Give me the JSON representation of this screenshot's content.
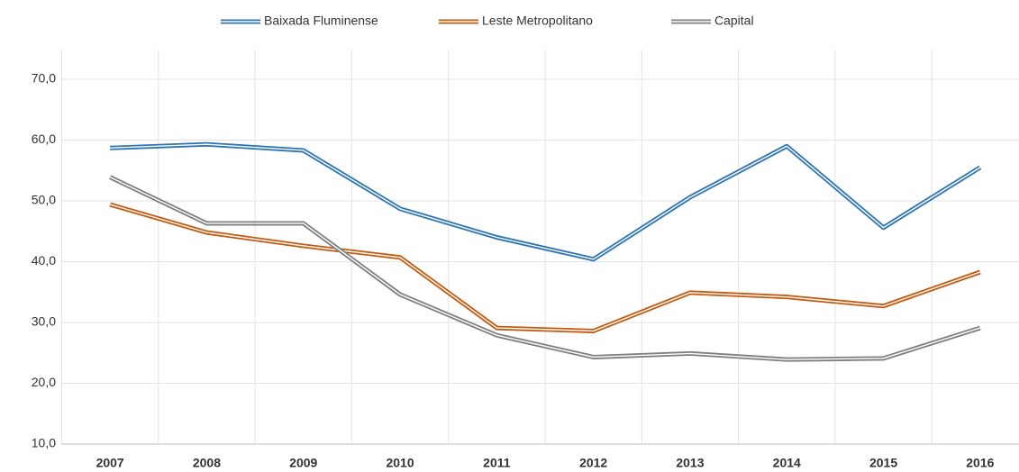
{
  "chart_data": {
    "type": "line",
    "categories": [
      "2007",
      "2008",
      "2009",
      "2010",
      "2011",
      "2012",
      "2013",
      "2014",
      "2015",
      "2016"
    ],
    "series": [
      {
        "name": "Baixada Fluminense",
        "color": "#2e75b6",
        "values": [
          58.7,
          59.3,
          58.3,
          48.7,
          44.0,
          40.4,
          50.6,
          59.0,
          45.6,
          55.5
        ]
      },
      {
        "name": "Leste Metropolitano",
        "color": "#c55a11",
        "values": [
          49.4,
          44.8,
          42.6,
          40.7,
          29.1,
          28.6,
          34.9,
          34.2,
          32.7,
          38.3
        ]
      },
      {
        "name": "Capital",
        "color": "#7f7f7f",
        "values": [
          53.9,
          46.3,
          46.3,
          34.6,
          27.9,
          24.3,
          24.9,
          23.9,
          24.1,
          29.1
        ]
      }
    ],
    "ylim": [
      10,
      70
    ],
    "yticks": [
      {
        "value": 10,
        "label": "10,0"
      },
      {
        "value": 20,
        "label": "20,0"
      },
      {
        "value": 30,
        "label": "30,0"
      },
      {
        "value": 40,
        "label": "40,0"
      },
      {
        "value": 50,
        "label": "50,0"
      },
      {
        "value": 60,
        "label": "60,0"
      },
      {
        "value": 70,
        "label": "70,0"
      }
    ],
    "grid": true,
    "legend": "top"
  }
}
